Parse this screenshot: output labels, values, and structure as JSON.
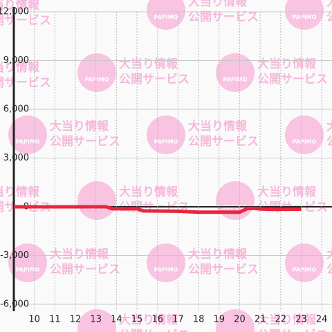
{
  "chart_data": {
    "type": "line",
    "watermark": {
      "logo": "PAPIMO",
      "line1": "大当り情報",
      "line2": "公開サービス"
    },
    "x": [
      9,
      13.5,
      13.8,
      15,
      15.3,
      17,
      18,
      20,
      20.4,
      20.7,
      21.3,
      23
    ],
    "series": [
      {
        "name": null,
        "color": "#e8263d",
        "values": [
          0,
          0,
          -120,
          -120,
          -250,
          -270,
          -330,
          -330,
          -100,
          -100,
          -150,
          -150
        ]
      }
    ],
    "xlim": [
      9,
      24.5
    ],
    "xticks": [
      10,
      11,
      12,
      13,
      14,
      15,
      16,
      17,
      18,
      19,
      20,
      21,
      22,
      23,
      24
    ],
    "ylim": [
      -6000,
      12000
    ],
    "yticks": [
      {
        "value": -6000,
        "label": "-6,000"
      },
      {
        "value": -3000,
        "label": "-3,000"
      },
      0,
      {
        "value": 3000,
        "label": "3,000"
      },
      {
        "value": 6000,
        "label": "6,000"
      },
      {
        "value": 9000,
        "label": "9,000"
      },
      {
        "value": 12000,
        "label": "12,000"
      }
    ],
    "grid": true
  }
}
